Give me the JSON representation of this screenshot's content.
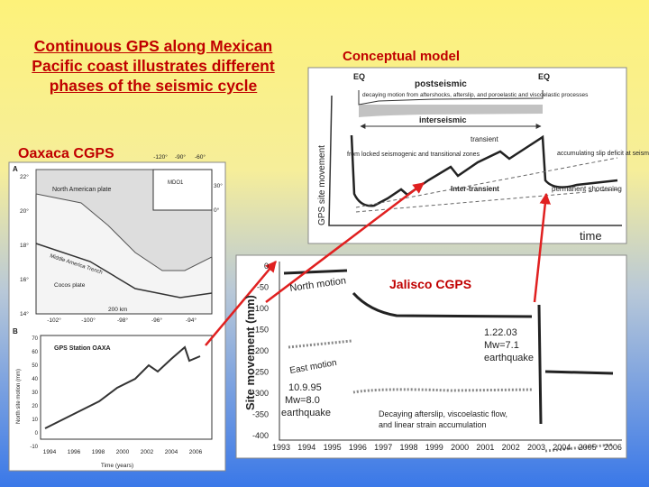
{
  "title": "Continuous GPS along Mexican Pacific coast illustrates different phases of the seismic cycle",
  "conceptual": {
    "heading": "Conceptual model",
    "eq_left": "EQ",
    "eq_right": "EQ",
    "postseismic": "postseismic",
    "postseismic_note": "decaying motion from aftershocks, afterslip, and poroelastic and viscoelastic processes",
    "interseismic": "interseismic",
    "transient": "transient",
    "locked_note": "from locked seismogenic and transitional zones",
    "inter_transient": "Inter-transient",
    "slip_note": "accumulating slip deficit at seismogenic zone",
    "permanent": "permanent shortening",
    "y_label": "GPS site movement",
    "x_label": "time"
  },
  "oaxaca": {
    "heading": "Oaxaca CGPS",
    "panel_a": "A",
    "panel_b": "B",
    "north_american_plate": "North American plate",
    "cocos_plate": "Cocos plate",
    "trench": "Middle America Trench",
    "scale": "200 km",
    "station_mdo1": "MDO1",
    "lat_ticks": [
      "22°",
      "20°",
      "18°",
      "16°",
      "14°"
    ],
    "lon_ticks": [
      "-102°",
      "-100°",
      "-98°",
      "-96°",
      "-94°"
    ],
    "inset_lon_ticks": [
      "-120°",
      "-90°",
      "-60°"
    ],
    "inset_lat_ticks": [
      "30°",
      "0°"
    ],
    "plot_title": "GPS Station OAXA",
    "x_label": "Time (years)",
    "y_label": "North site motion (mm)",
    "x_ticks": [
      "1994",
      "1996",
      "1998",
      "2000",
      "2002",
      "2004",
      "2006"
    ],
    "y_ticks": [
      "70",
      "60",
      "50",
      "40",
      "30",
      "20",
      "10",
      "0",
      "-10"
    ]
  },
  "jalisco": {
    "heading": "Jalisco CGPS",
    "y_label": "Site movement (mm)",
    "y_ticks": [
      "0",
      "-50",
      "-100",
      "-150",
      "-200",
      "-250",
      "-300",
      "-350",
      "-400"
    ],
    "x_ticks": [
      "1993",
      "1994",
      "1995",
      "1996",
      "1997",
      "1998",
      "1999",
      "2000",
      "2001",
      "2002",
      "2003",
      "2004",
      "2005",
      "2006"
    ],
    "north_motion": "North motion",
    "east_motion": "East motion",
    "eq2_date": "1.22.03",
    "eq2_mag": "Mw=7.1",
    "eq2_word": "earthquake",
    "eq1_date": "10.9.95",
    "eq1_mag": "Mw=8.0",
    "eq1_word": "earthquake",
    "note_line1": "Decaying afterslip, viscoelastic flow,",
    "note_line2": "and linear strain accumulation"
  }
}
